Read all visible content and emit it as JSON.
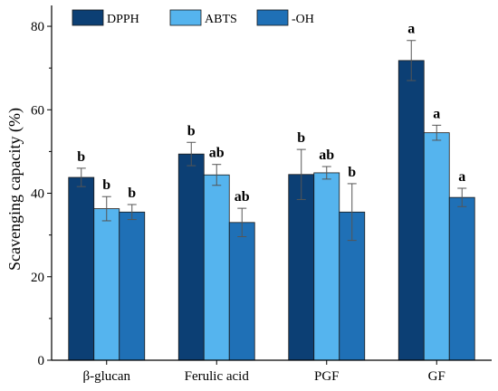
{
  "chart_data": {
    "type": "bar",
    "title": "",
    "xlabel": "",
    "ylabel": "Scavenging capacity (%)",
    "ylim": [
      0,
      85
    ],
    "yticks": [
      0,
      20,
      40,
      60,
      80
    ],
    "grid": false,
    "legend_position": "top-left",
    "categories": [
      "β-glucan",
      "Ferulic acid",
      "PGF",
      "GF"
    ],
    "series": [
      {
        "name": "DPPH",
        "color": "#0c3f74",
        "values": [
          43.8,
          49.4,
          44.5,
          71.8
        ],
        "errors": [
          2.2,
          2.8,
          6.0,
          4.8
        ],
        "labels": [
          "b",
          "b",
          "b",
          "a"
        ]
      },
      {
        "name": "ABTS",
        "color": "#55b4ee",
        "values": [
          36.3,
          44.4,
          44.9,
          54.5
        ],
        "errors": [
          2.9,
          2.5,
          1.5,
          1.8
        ],
        "labels": [
          "b",
          "ab",
          "ab",
          "a"
        ]
      },
      {
        "name": "-OH",
        "color": "#1f70b6",
        "values": [
          35.5,
          33.0,
          35.5,
          39.0
        ],
        "errors": [
          1.8,
          3.4,
          6.8,
          2.2
        ],
        "labels": [
          "b",
          "ab",
          "b",
          "a"
        ]
      }
    ]
  }
}
